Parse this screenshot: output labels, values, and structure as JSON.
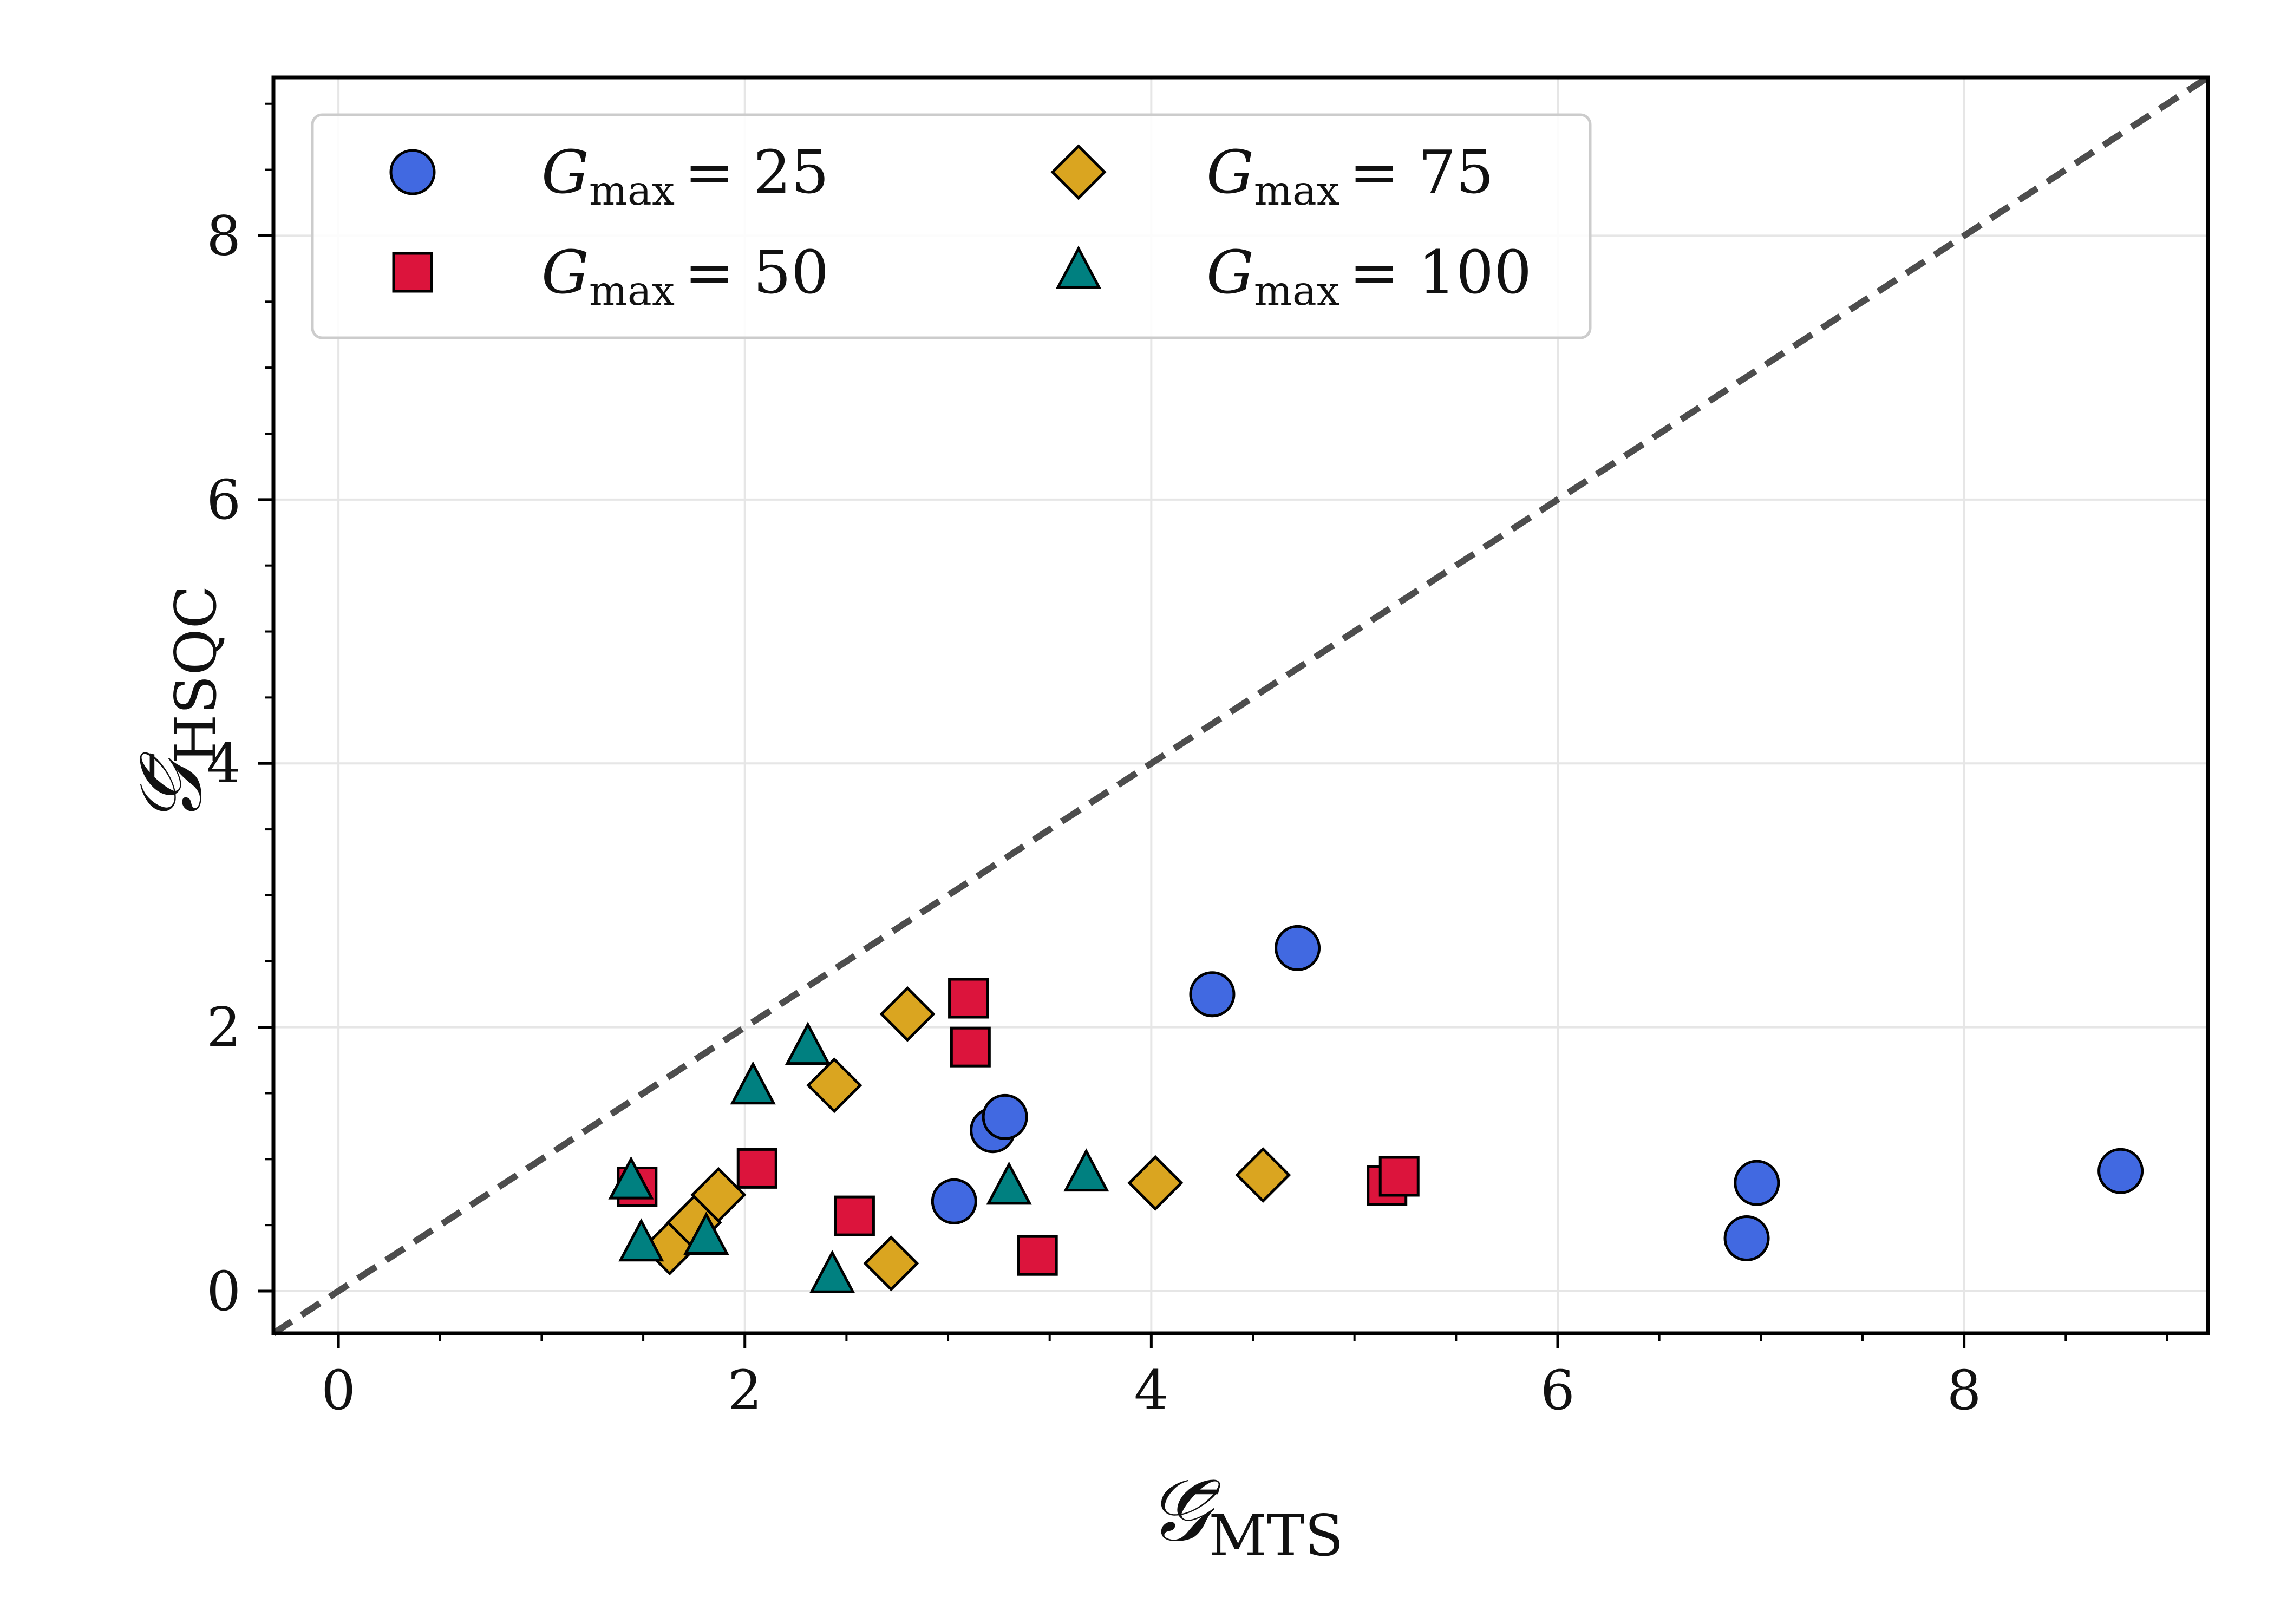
{
  "chart_data": {
    "type": "scatter",
    "xlabel": {
      "symbol": "𝒢̄",
      "sub": "MTS"
    },
    "ylabel": {
      "symbol": "𝒢̄",
      "sub": "HSQC"
    },
    "xlim": [
      -0.32,
      9.2
    ],
    "ylim": [
      -0.32,
      9.2
    ],
    "xticks": [
      0,
      2,
      4,
      6,
      8
    ],
    "yticks": [
      0,
      2,
      4,
      6,
      8
    ],
    "xtick_labels": [
      "0",
      "2",
      "4",
      "6",
      "8"
    ],
    "ytick_labels": [
      "0",
      "2",
      "4",
      "6",
      "8"
    ],
    "grid": true,
    "reference_line": {
      "style": "dashed",
      "slope": 1,
      "intercept": 0,
      "color": "#4d4d4d"
    },
    "legend": {
      "placement": "top-left",
      "columns": 2
    },
    "series": [
      {
        "name": "G_max = 25",
        "label_var": "G",
        "label_sub": "max",
        "label_value": "= 25",
        "marker": "circle",
        "color": "#4169e1",
        "points": [
          [
            3.03,
            0.68
          ],
          [
            3.22,
            1.22
          ],
          [
            3.28,
            1.32
          ],
          [
            4.3,
            2.25
          ],
          [
            4.72,
            2.6
          ],
          [
            6.93,
            0.4
          ],
          [
            6.98,
            0.82
          ],
          [
            8.77,
            0.91
          ]
        ]
      },
      {
        "name": "G_max = 50",
        "label_var": "G",
        "label_sub": "max",
        "label_value": "= 50",
        "marker": "square",
        "color": "#dc143c",
        "points": [
          [
            1.47,
            0.79
          ],
          [
            2.06,
            0.93
          ],
          [
            2.54,
            0.57
          ],
          [
            3.1,
            2.22
          ],
          [
            3.11,
            1.85
          ],
          [
            3.44,
            0.27
          ],
          [
            5.16,
            0.8
          ],
          [
            5.22,
            0.87
          ]
        ]
      },
      {
        "name": "G_max = 75",
        "label_var": "G",
        "label_sub": "max",
        "label_value": "= 75",
        "marker": "diamond",
        "color": "#daa520",
        "points": [
          [
            1.63,
            0.33
          ],
          [
            1.75,
            0.52
          ],
          [
            1.87,
            0.73
          ],
          [
            2.44,
            1.56
          ],
          [
            2.72,
            0.21
          ],
          [
            2.8,
            2.1
          ],
          [
            4.02,
            0.82
          ],
          [
            4.55,
            0.88
          ]
        ]
      },
      {
        "name": "G_max = 100",
        "label_var": "G",
        "label_sub": "max",
        "label_value": "= 100",
        "marker": "triangle",
        "color": "#008080",
        "points": [
          [
            1.44,
            0.82
          ],
          [
            1.49,
            0.35
          ],
          [
            1.81,
            0.4
          ],
          [
            2.04,
            1.54
          ],
          [
            2.31,
            1.84
          ],
          [
            2.43,
            0.11
          ],
          [
            3.3,
            0.78
          ],
          [
            3.68,
            0.88
          ]
        ]
      }
    ]
  }
}
